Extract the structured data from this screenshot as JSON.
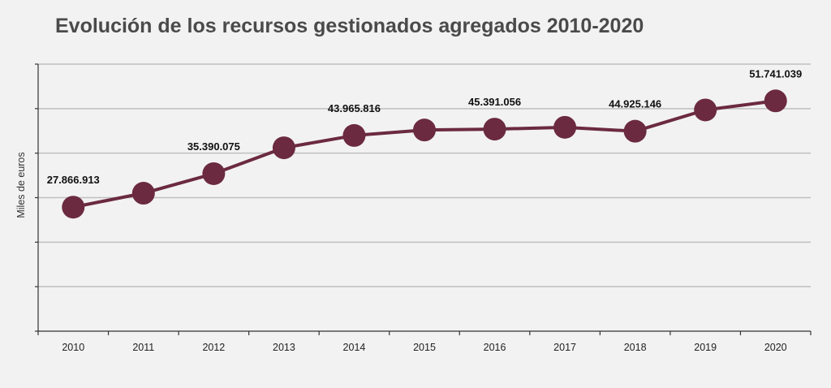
{
  "colors": {
    "background": "#f2f2f2",
    "series": "#6b2a3f",
    "gridline": "#bfbfbf",
    "axis": "#333333"
  },
  "chart_data": {
    "type": "line",
    "title": "Evolución de los recursos gestionados agregados 2010-2020",
    "xlabel": "",
    "ylabel": "Miles de euros",
    "categories": [
      "2010",
      "2011",
      "2012",
      "2013",
      "2014",
      "2015",
      "2016",
      "2017",
      "2018",
      "2019",
      "2020"
    ],
    "series": [
      {
        "values": [
          27866913,
          31000000,
          35390075,
          41200000,
          43965816,
          45200000,
          45391056,
          45800000,
          44925146,
          49700000,
          51741039
        ]
      }
    ],
    "data_labels": [
      {
        "index": 0,
        "text": "27.866.913"
      },
      {
        "index": 2,
        "text": "35.390.075"
      },
      {
        "index": 4,
        "text": "43.965.816"
      },
      {
        "index": 6,
        "text": "45.391.056"
      },
      {
        "index": 8,
        "text": "44.925.146"
      },
      {
        "index": 10,
        "text": "51.741.039"
      }
    ],
    "ylim": [
      0,
      60000000
    ],
    "y_gridline_step": 10000000,
    "y_tick_labels_shown": false,
    "grid": true,
    "legend": "none"
  }
}
